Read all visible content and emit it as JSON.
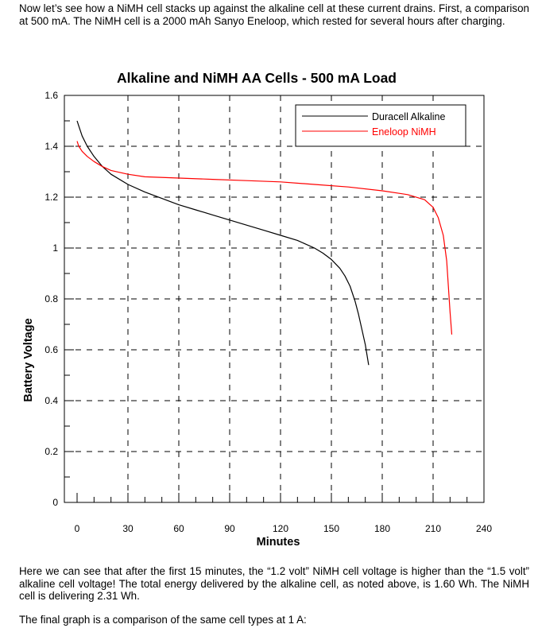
{
  "intro_paragraph": "Now let’s see how a NiMH cell stacks up against the alkaline cell at these current drains. First, a comparison at 500 mA. The NiMH cell is a 2000 mAh Sanyo Eneloop, which rested for several hours after charging.",
  "analysis_paragraph": "Here we can see that after the first 15 minutes, the “1.2 volt” NiMH cell voltage is higher than the “1.5 volt” alkaline cell voltage! The total energy delivered by the alkaline cell, as noted above, is 1.60 Wh. The NiMH cell is delivering 2.31 Wh.",
  "closing_paragraph": "The final graph is a comparison of the same cell types at 1 A:",
  "chart_data": {
    "type": "line",
    "title": "Alkaline and NiMH AA Cells - 500 mA Load",
    "xlabel": "Minutes",
    "ylabel": "Battery Voltage",
    "xlim": [
      0,
      240
    ],
    "ylim": [
      0,
      1.6
    ],
    "xticks": [
      0,
      30,
      60,
      90,
      120,
      150,
      180,
      210,
      240
    ],
    "xtick_labels": [
      "0",
      "30",
      "60",
      "90",
      "120",
      "150",
      "180",
      "210",
      "240"
    ],
    "yticks": [
      0,
      0.2,
      0.4,
      0.6,
      0.8,
      1.0,
      1.2,
      1.4,
      1.6
    ],
    "ytick_labels": [
      "0",
      "0.2",
      "0.4",
      "0.6",
      "0.8",
      "1",
      "1.2",
      "1.4",
      "1.6"
    ],
    "grid": true,
    "legend_position": "top-right",
    "series": [
      {
        "name": "Duracell Alkaline",
        "color": "#000000",
        "x": [
          0,
          1,
          3,
          6,
          10,
          15,
          20,
          30,
          40,
          50,
          60,
          70,
          80,
          90,
          100,
          110,
          120,
          130,
          140,
          145,
          150,
          155,
          158,
          161,
          164,
          166,
          168,
          170,
          171,
          172
        ],
        "y": [
          1.5,
          1.48,
          1.44,
          1.4,
          1.36,
          1.32,
          1.29,
          1.25,
          1.22,
          1.195,
          1.17,
          1.15,
          1.13,
          1.11,
          1.09,
          1.07,
          1.05,
          1.03,
          1.0,
          0.98,
          0.955,
          0.92,
          0.89,
          0.85,
          0.79,
          0.74,
          0.68,
          0.62,
          0.58,
          0.54
        ]
      },
      {
        "name": "Eneloop NiMH",
        "color": "#ff0000",
        "x": [
          0,
          1,
          3,
          6,
          10,
          15,
          20,
          30,
          40,
          60,
          80,
          100,
          120,
          140,
          160,
          180,
          195,
          205,
          210,
          213,
          216,
          218,
          219,
          220,
          221
        ],
        "y": [
          1.42,
          1.4,
          1.38,
          1.36,
          1.34,
          1.32,
          1.305,
          1.29,
          1.28,
          1.275,
          1.27,
          1.265,
          1.26,
          1.25,
          1.24,
          1.225,
          1.21,
          1.19,
          1.16,
          1.12,
          1.05,
          0.95,
          0.85,
          0.75,
          0.66
        ]
      }
    ]
  }
}
